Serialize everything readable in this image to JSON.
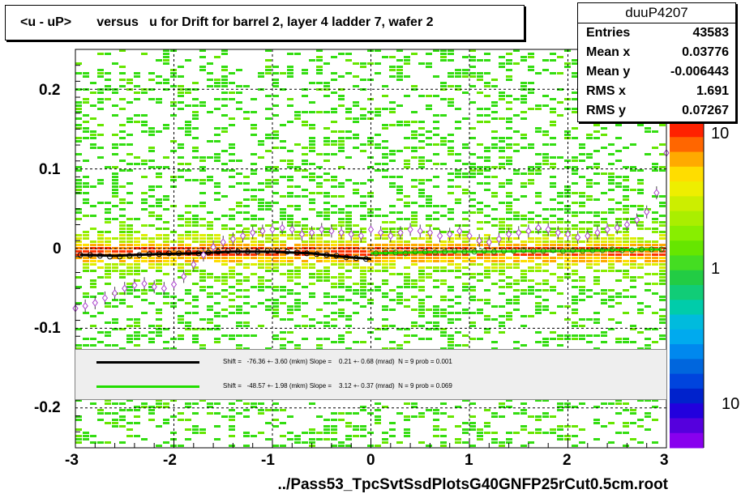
{
  "title": "<u - uP>       versus   u for Drift for barrel 2, layer 4 ladder 7, wafer 2",
  "x_axis_label": "../Pass53_TpcSvtSsdPlotsG40GNFP25rCut0.5cm.root",
  "stats": {
    "name": "duuP4207",
    "rows": [
      {
        "label": "Entries",
        "value": "43583"
      },
      {
        "label": "Mean x",
        "value": "0.03776"
      },
      {
        "label": "Mean y",
        "value": "-0.006443"
      },
      {
        "label": "RMS x",
        "value": "1.691"
      },
      {
        "label": "RMS y",
        "value": "0.07267"
      }
    ]
  },
  "fit_legend": [
    {
      "color": "#000000",
      "text": "Shift =   -76.36 +- 3.60 (mkm) Slope =    0.21 +- 0.68 (mrad)  N = 9 prob = 0.001"
    },
    {
      "color": "#22dd00",
      "text": "Shift =   -48.57 +- 1.98 (mkm) Slope =    3.12 +- 0.37 (mrad)  N = 9 prob = 0.069"
    }
  ],
  "colorbar": {
    "labels": [
      "10",
      "1",
      "10"
    ]
  },
  "chart_data": {
    "type": "heatmap",
    "xlim": [
      -3,
      3
    ],
    "ylim": [
      -0.25,
      0.25
    ],
    "x_ticks": [
      "-3",
      "-2",
      "-1",
      "0",
      "1",
      "2",
      "3"
    ],
    "y_ticks": [
      "0.2",
      "0.1",
      "0",
      "-0.1",
      "-0.2"
    ],
    "y_tick_values": [
      0.2,
      0.1,
      0,
      -0.1,
      -0.2
    ],
    "x_tick_values": [
      -3,
      -2,
      -1,
      0,
      1,
      2,
      3
    ],
    "grid": true,
    "series": [
      {
        "name": "profile mean",
        "x": [
          -3.0,
          -2.9,
          -2.8,
          -2.7,
          -2.6,
          -2.5,
          -2.4,
          -2.3,
          -2.2,
          -2.1,
          -2.0,
          -1.9,
          -1.8,
          -1.7,
          -1.6,
          -1.5,
          -1.4,
          -1.3,
          -1.2,
          -1.1,
          -1.0,
          -0.9,
          -0.8,
          -0.7,
          -0.6,
          -0.5,
          -0.4,
          -0.3,
          -0.2,
          -0.1,
          0.0,
          0.1,
          0.2,
          0.3,
          0.4,
          0.5,
          0.6,
          0.7,
          0.8,
          0.9,
          1.0,
          1.1,
          1.2,
          1.3,
          1.4,
          1.5,
          1.6,
          1.7,
          1.8,
          1.9,
          2.0,
          2.1,
          2.2,
          2.3,
          2.4,
          2.5,
          2.6,
          2.7,
          2.8,
          2.9,
          3.0
        ],
        "y": [
          -0.075,
          -0.072,
          -0.068,
          -0.062,
          -0.056,
          -0.05,
          -0.046,
          -0.044,
          -0.048,
          -0.05,
          -0.045,
          -0.035,
          -0.02,
          -0.008,
          0.002,
          0.008,
          0.012,
          0.016,
          0.02,
          0.022,
          0.024,
          0.026,
          0.024,
          0.018,
          0.02,
          0.024,
          0.022,
          0.02,
          0.018,
          0.016,
          0.024,
          0.02,
          0.016,
          0.02,
          0.024,
          0.022,
          0.02,
          0.016,
          0.018,
          0.022,
          0.016,
          0.01,
          0.008,
          0.012,
          0.018,
          0.02,
          0.022,
          0.026,
          0.024,
          0.02,
          0.018,
          0.014,
          0.016,
          0.02,
          0.024,
          0.026,
          0.03,
          0.036,
          0.046,
          0.07,
          0.12
        ]
      },
      {
        "name": "black fit",
        "x": [
          -2.95,
          -2.6,
          -2.2,
          -1.8,
          -1.4,
          -1.0,
          -0.6,
          -0.3,
          0.0
        ],
        "y": [
          -0.008,
          -0.009,
          -0.007,
          -0.006,
          -0.004,
          -0.004,
          -0.006,
          -0.01,
          -0.013
        ]
      },
      {
        "name": "green fit",
        "x": [
          0.0,
          0.4,
          0.8,
          1.2,
          1.6,
          2.0,
          2.4,
          2.8,
          2.95
        ],
        "y": [
          -0.006,
          -0.005,
          -0.004,
          -0.004,
          -0.003,
          -0.003,
          -0.002,
          -0.001,
          -0.001
        ]
      },
      {
        "name": "black points",
        "x": [
          -2.95,
          -2.85,
          -2.75,
          -2.65,
          -2.55,
          -2.45,
          -2.35,
          -2.25,
          -2.15,
          -2.05,
          -1.95,
          -1.85,
          -1.75,
          -1.65,
          -1.55,
          -1.45,
          -1.35,
          -1.25,
          -1.15,
          -1.05,
          -0.95,
          -0.85,
          -0.75,
          -0.65,
          -0.55,
          -0.45,
          -0.35,
          -0.25,
          -0.15,
          -0.05
        ],
        "y": [
          -0.008,
          -0.008,
          -0.009,
          -0.01,
          -0.01,
          -0.009,
          -0.008,
          -0.007,
          -0.007,
          -0.006,
          -0.006,
          -0.005,
          -0.006,
          -0.005,
          -0.004,
          -0.003,
          -0.004,
          -0.004,
          -0.004,
          -0.003,
          -0.003,
          -0.004,
          -0.005,
          -0.006,
          -0.007,
          -0.008,
          -0.009,
          -0.011,
          -0.012,
          -0.013
        ]
      },
      {
        "name": "green points",
        "x": [
          0.05,
          0.15,
          0.25,
          0.35,
          0.45,
          0.55,
          0.65,
          0.75,
          0.85,
          0.95,
          1.05,
          1.15,
          1.25,
          1.35,
          1.45,
          1.55,
          1.65,
          1.75,
          1.85,
          1.95,
          2.05,
          2.15,
          2.25,
          2.35,
          2.45,
          2.55,
          2.65,
          2.75,
          2.85,
          2.95
        ],
        "y": [
          -0.006,
          -0.005,
          -0.005,
          -0.006,
          -0.004,
          -0.004,
          -0.005,
          -0.004,
          -0.003,
          -0.004,
          -0.004,
          -0.003,
          -0.004,
          -0.003,
          -0.003,
          -0.002,
          -0.003,
          -0.003,
          -0.002,
          -0.003,
          -0.002,
          -0.003,
          -0.002,
          -0.002,
          -0.001,
          -0.002,
          -0.002,
          -0.001,
          -0.001,
          -0.001
        ]
      }
    ]
  }
}
